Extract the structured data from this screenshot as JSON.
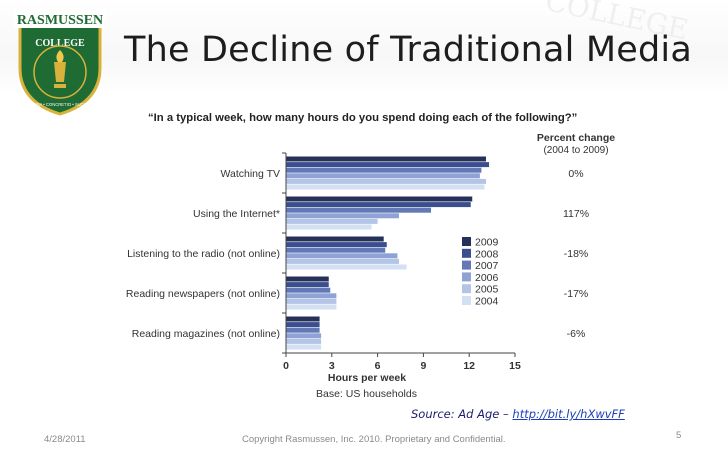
{
  "slide": {
    "title": "The Decline of Traditional Media",
    "source_prefix": "Source: Ad Age – ",
    "source_link": "http://bit.ly/hXwvFF",
    "footer_date": "4/28/2011",
    "footer_copyright": "Copyright Rasmussen, Inc. 2010. Proprietary and Confidential.",
    "page_number": "5",
    "logo_text": "RASMUSSEN",
    "logo_subtext": "COLLEGE",
    "logo_motto": "DOCTRINA • CONCRETIO • SUCCESSIO",
    "watermark_text": "COLLEGE",
    "colors": {
      "logo_green": "#1f6b34",
      "logo_gold": "#d8b23a",
      "accent_navy": "#1c1c6e"
    }
  },
  "chart_data": {
    "type": "bar",
    "orientation": "horizontal",
    "title": "“In a typical week, how many hours do you spend doing each of the following?”",
    "categories": [
      "Watching TV",
      "Using the Internet*",
      "Listening to the radio (not online)",
      "Reading newspapers (not online)",
      "Reading magazines (not online)"
    ],
    "series": [
      {
        "name": "2009",
        "color": "#26305a",
        "values": [
          13.1,
          12.2,
          6.4,
          2.8,
          2.2
        ]
      },
      {
        "name": "2008",
        "color": "#3b4f8e",
        "values": [
          13.3,
          12.1,
          6.6,
          2.8,
          2.2
        ]
      },
      {
        "name": "2007",
        "color": "#6279b6",
        "values": [
          12.8,
          9.5,
          6.5,
          2.9,
          2.2
        ]
      },
      {
        "name": "2006",
        "color": "#8ea3d4",
        "values": [
          12.7,
          7.4,
          7.3,
          3.3,
          2.3
        ]
      },
      {
        "name": "2005",
        "color": "#b3c4e6",
        "values": [
          13.1,
          6.0,
          7.4,
          3.3,
          2.3
        ]
      },
      {
        "name": "2004",
        "color": "#d3dff2",
        "values": [
          13.0,
          5.6,
          7.9,
          3.3,
          2.3
        ]
      }
    ],
    "percent_change_header": [
      "Percent change",
      "(2004 to 2009)"
    ],
    "percent_change": [
      "0%",
      "117%",
      "-18%",
      "-17%",
      "-6%"
    ],
    "xlabel": "Hours per week",
    "xticks": [
      0,
      3,
      6,
      9,
      12,
      15
    ],
    "xlim": [
      0,
      15
    ],
    "note": "Base: US households",
    "legend_placement": "right"
  }
}
